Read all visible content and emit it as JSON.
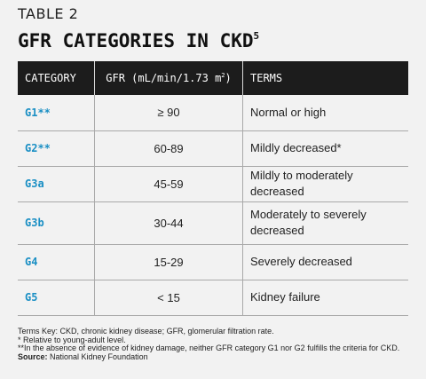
{
  "table_number": "TABLE 2",
  "title": "GFR CATEGORIES IN CKD",
  "title_superscript": "5",
  "headers": {
    "category": "CATEGORY",
    "gfr": "GFR (mL/min/1.73 m",
    "gfr_superscript": "2",
    "gfr_suffix": ")",
    "terms": "TERMS"
  },
  "rows": [
    {
      "category": "G1**",
      "gfr": "≥ 90",
      "terms": "Normal or high"
    },
    {
      "category": "G2**",
      "gfr": "60-89",
      "terms": "Mildly decreased*"
    },
    {
      "category": "G3a",
      "gfr": "45-59",
      "terms": "Mildly to moderately decreased"
    },
    {
      "category": "G3b",
      "gfr": "30-44",
      "terms": "Moderately to severely decreased"
    },
    {
      "category": "G4",
      "gfr": "15-29",
      "terms": "Severely decreased"
    },
    {
      "category": "G5",
      "gfr": "< 15",
      "terms": "Kidney failure"
    }
  ],
  "notes": {
    "terms_key": "Terms Key: CKD, chronic kidney disease; GFR, glomerular filtration rate.",
    "note1": "* Relative to young-adult level.",
    "note2": "**In the absence of evidence of kidney damage, neither GFR category G1 nor G2 fulfills the criteria for CKD.",
    "source_label": "Source:",
    "source_text": " National Kidney Foundation"
  },
  "colors": {
    "category_text": "#1a8fc4",
    "header_bg": "#1c1c1c",
    "page_bg": "#f2f2f2"
  }
}
